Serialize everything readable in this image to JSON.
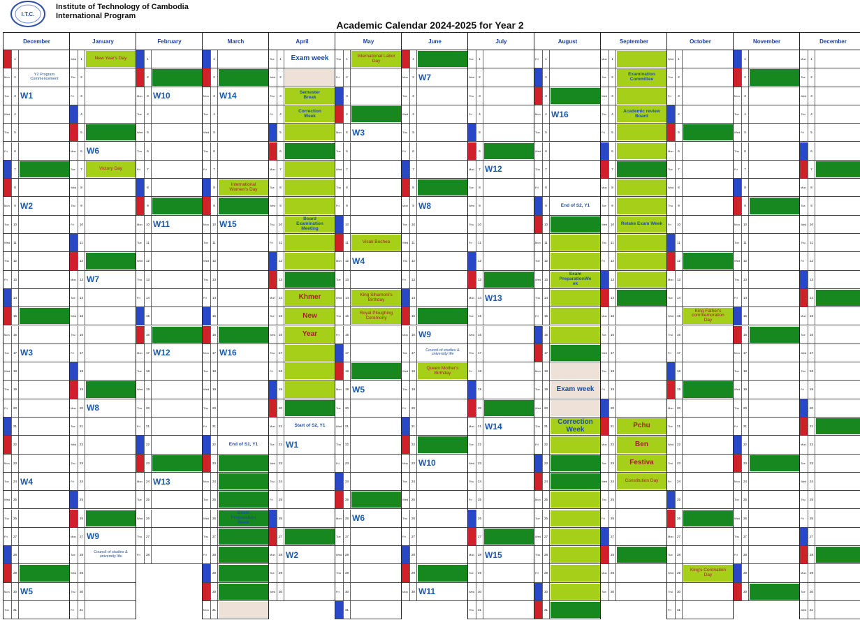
{
  "header": {
    "org_line1": "Institute of Technology of Cambodia",
    "org_line2": "International Program",
    "title": "Academic Calendar 2024-2025 for Year 2",
    "logo_text": "I.T.C."
  },
  "dow_labels": [
    "Mon",
    "Tue",
    "Wed",
    "Thu",
    "Fri",
    "Sat",
    "Sun"
  ],
  "colors": {
    "sat": "#2848c8",
    "sun": "#d0202a",
    "green": "#16881f",
    "light_green": "#a6cf1a",
    "peach": "#eee2d8",
    "week_text": "#1d5aa8",
    "holiday_text": "#a2222a"
  },
  "months": [
    {
      "name": "December",
      "start": 6,
      "days": 31,
      "fills": {
        "7": "g",
        "15": "g",
        "29": "g"
      },
      "weeks": {
        "3": "W1",
        "9": "W2",
        "17": "W3",
        "24": "W4",
        "30": "W5"
      },
      "events": {
        "2": {
          "t": "Y2 Program\nCommencement",
          "c": "sm"
        }
      }
    },
    {
      "name": "January",
      "start": 2,
      "days": 31,
      "fills": {
        "1": "l",
        "5": "g",
        "7": "l",
        "12": "g",
        "19": "g",
        "26": "g"
      },
      "weeks": {
        "6": "W6",
        "13": "W7",
        "20": "W8",
        "27": "W9"
      },
      "events": {
        "1": {
          "t": "New Year's Day",
          "c": "red"
        },
        "7": {
          "t": "Victory Day",
          "c": "red"
        },
        "28": {
          "t": "Council of studies &\nuniversity life",
          "c": "sm"
        }
      }
    },
    {
      "name": "February",
      "start": 5,
      "days": 28,
      "fills": {
        "2": "g",
        "9": "g",
        "16": "g",
        "23": "g"
      },
      "weeks": {
        "3": "W10",
        "10": "W11",
        "17": "W12",
        "24": "W13"
      },
      "events": {}
    },
    {
      "name": "March",
      "start": 5,
      "days": 31,
      "fills": {
        "2": "g",
        "8": "l",
        "9": "g",
        "16": "g",
        "23": "g",
        "24": "g",
        "25": "g",
        "26": "g",
        "27": "g",
        "28": "g",
        "29": "g",
        "30": "g",
        "31": "p"
      },
      "weeks": {
        "3": "W14",
        "10": "W15",
        "17": "W16"
      },
      "events": {
        "8": {
          "t": "International\nWomen's Day",
          "c": "red"
        },
        "22": {
          "t": "End of S1, Y1",
          "c": "gr"
        },
        "26": {
          "t": "Exam\nPreparation\nWeek",
          "c": "gr"
        }
      }
    },
    {
      "name": "April",
      "start": 1,
      "days": 30,
      "fills": {
        "2": "p",
        "3": "l",
        "4": "l",
        "5": "l",
        "6": "g",
        "7": "l",
        "8": "l",
        "9": "l",
        "10": "l",
        "11": "l",
        "12": "l",
        "13": "g",
        "14": "l",
        "15": "l",
        "16": "l",
        "17": "l",
        "18": "l",
        "19": "l",
        "20": "g",
        "27": "g"
      },
      "weeks": {
        "22": "W1",
        "28": "W2"
      },
      "events": {
        "1": {
          "t": "Exam week",
          "c": "big blue"
        },
        "3": {
          "t": "Semester\nBreak",
          "c": "gr"
        },
        "4": {
          "t": "Correction\nWeek",
          "c": "gr"
        },
        "10": {
          "t": "Board\nExamination\nMeeting",
          "c": "gr"
        },
        "14": {
          "t": "Khmer",
          "c": "redbig"
        },
        "15": {
          "t": "New",
          "c": "redbig"
        },
        "16": {
          "t": "Year",
          "c": "redbig"
        },
        "21": {
          "t": "Start of S2, Y1",
          "c": "gr"
        }
      }
    },
    {
      "name": "May",
      "start": 3,
      "days": 31,
      "fills": {
        "1": "l",
        "4": "g",
        "11": "l",
        "14": "l",
        "15": "l",
        "18": "g",
        "25": "g"
      },
      "weeks": {
        "5": "W3",
        "12": "W4",
        "19": "W5",
        "26": "W6"
      },
      "events": {
        "1": {
          "t": "International Labor\nDay",
          "c": "red"
        },
        "11": {
          "t": "Visak Bochea",
          "c": "red"
        },
        "14": {
          "t": "King Sihamoni's\nBirthday",
          "c": "red"
        },
        "15": {
          "t": "Royal Ploughing\nCeremony",
          "c": "red"
        }
      }
    },
    {
      "name": "June",
      "start": 6,
      "days": 30,
      "fills": {
        "1": "g",
        "8": "g",
        "15": "g",
        "18": "l",
        "22": "g",
        "29": "g"
      },
      "weeks": {
        "2": "W7",
        "9": "W8",
        "16": "W9",
        "23": "W10",
        "30": "W11"
      },
      "events": {
        "17": {
          "t": "Council of studies &\nuniversity life",
          "c": "sm"
        },
        "18": {
          "t": "Queen Mother's\nBirthday",
          "c": "red"
        }
      }
    },
    {
      "name": "July",
      "start": 1,
      "days": 31,
      "fills": {
        "6": "g",
        "13": "g",
        "20": "g",
        "27": "g"
      },
      "weeks": {
        "7": "W12",
        "14": "W13",
        "21": "W14",
        "28": "W15"
      },
      "events": {}
    },
    {
      "name": "August",
      "start": 4,
      "days": 31,
      "fills": {
        "3": "g",
        "10": "g",
        "11": "l",
        "12": "l",
        "13": "l",
        "14": "l",
        "15": "l",
        "16": "l",
        "17": "g",
        "18": "p",
        "19": "p",
        "20": "p",
        "21": "l",
        "22": "l",
        "23": "g",
        "24": "g",
        "25": "l",
        "26": "l",
        "27": "l",
        "28": "l",
        "29": "l",
        "30": "l",
        "31": "g"
      },
      "weeks": {
        "4": "W16"
      },
      "events": {
        "9": {
          "t": "End of S2, Y1",
          "c": "gr"
        },
        "13": {
          "t": "Exam\nPreparationWe\nek",
          "c": "gr"
        },
        "19": {
          "t": "Exam week",
          "c": "big blue"
        },
        "21": {
          "t": "Correction\nWeek",
          "c": "big blue"
        }
      }
    },
    {
      "name": "September",
      "start": 0,
      "days": 30,
      "fills": {
        "1": "l",
        "2": "l",
        "3": "l",
        "4": "l",
        "5": "l",
        "6": "l",
        "7": "g",
        "8": "l",
        "9": "l",
        "10": "l",
        "11": "l",
        "12": "l",
        "13": "l",
        "14": "g",
        "21": "l",
        "22": "l",
        "23": "l",
        "24": "l",
        "28": "g"
      },
      "weeks": {},
      "events": {
        "2": {
          "t": "Examination\nCommittee",
          "c": "gr"
        },
        "4": {
          "t": "Academic review\nBoard",
          "c": "gr"
        },
        "10": {
          "t": "Retake Exam Week",
          "c": "gr"
        },
        "21": {
          "t": "Pchu",
          "c": "redbig"
        },
        "22": {
          "t": "Ben",
          "c": "redbig"
        },
        "23": {
          "t": "Festiva",
          "c": "redbig"
        },
        "24": {
          "t": "Constitution Day",
          "c": "red"
        }
      }
    },
    {
      "name": "October",
      "start": 2,
      "days": 31,
      "fills": {
        "5": "g",
        "12": "g",
        "15": "l",
        "19": "g",
        "26": "g",
        "29": "l"
      },
      "weeks": {},
      "events": {
        "15": {
          "t": "King Father's\ncommemoration\nDay",
          "c": "red"
        },
        "29": {
          "t": "King's Coronation\nDay",
          "c": "red"
        }
      }
    },
    {
      "name": "November",
      "start": 5,
      "days": 30,
      "fills": {
        "2": "g",
        "9": "g",
        "16": "g",
        "23": "g",
        "30": "g"
      },
      "weeks": {},
      "events": {}
    },
    {
      "name": "December",
      "start": 0,
      "days": 31,
      "fills": {
        "7": "g",
        "14": "g",
        "21": "g",
        "28": "g"
      },
      "weeks": {},
      "events": {}
    }
  ]
}
